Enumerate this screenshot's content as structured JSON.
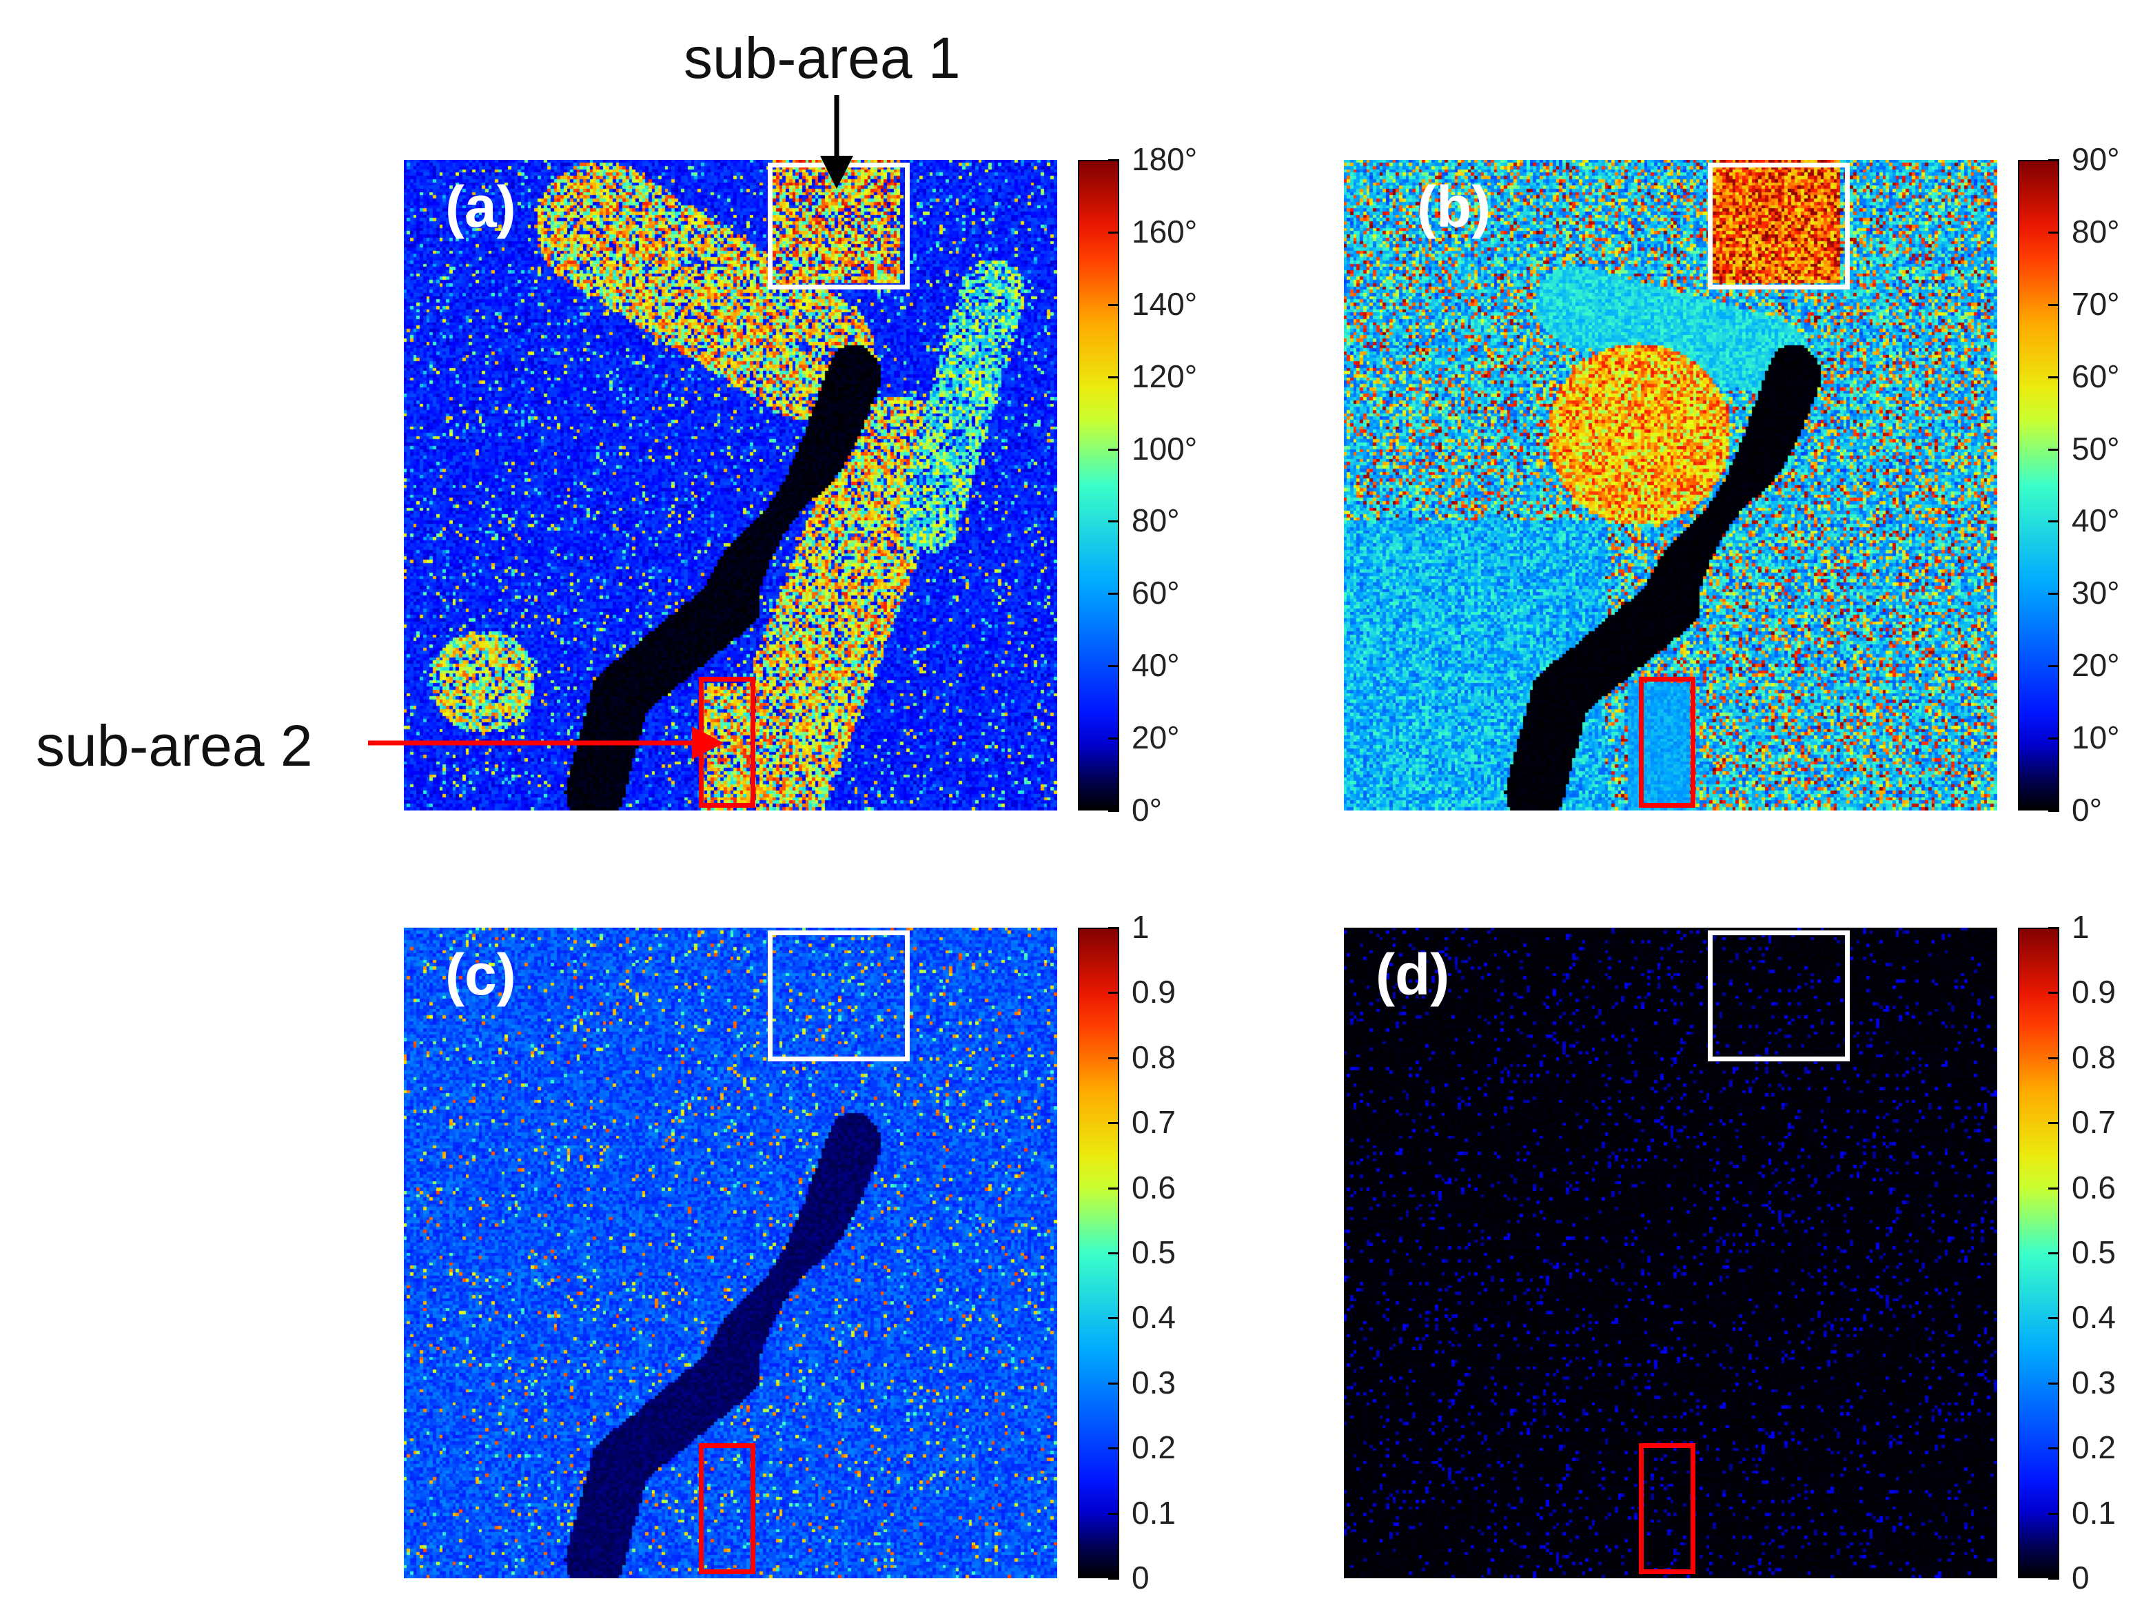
{
  "annotations": {
    "sub_area_1": "sub-area 1",
    "sub_area_2": "sub-area 2"
  },
  "colors": {
    "roi_sub_area_1": "#ffffff",
    "roi_sub_area_2": "#ff0000",
    "arrow_sub_area_1": "#000000",
    "arrow_sub_area_2": "#ff0000"
  },
  "panels": [
    {
      "id": "a",
      "label": "(a)",
      "colormap": "jet",
      "ticks": [
        "0°",
        "20°",
        "40°",
        "60°",
        "80°",
        "100°",
        "120°",
        "140°",
        "160°",
        "180°"
      ]
    },
    {
      "id": "b",
      "label": "(b)",
      "colormap": "jet",
      "ticks": [
        "0°",
        "10°",
        "20°",
        "30°",
        "40°",
        "50°",
        "60°",
        "70°",
        "80°",
        "90°"
      ]
    },
    {
      "id": "c",
      "label": "(c)",
      "colormap": "jet",
      "ticks": [
        "0",
        "0.1",
        "0.2",
        "0.3",
        "0.4",
        "0.5",
        "0.6",
        "0.7",
        "0.8",
        "0.9",
        "1"
      ]
    },
    {
      "id": "d",
      "label": "(d)",
      "colormap": "jet",
      "ticks": [
        "0",
        "0.1",
        "0.2",
        "0.3",
        "0.4",
        "0.5",
        "0.6",
        "0.7",
        "0.8",
        "0.9",
        "1"
      ]
    }
  ]
}
